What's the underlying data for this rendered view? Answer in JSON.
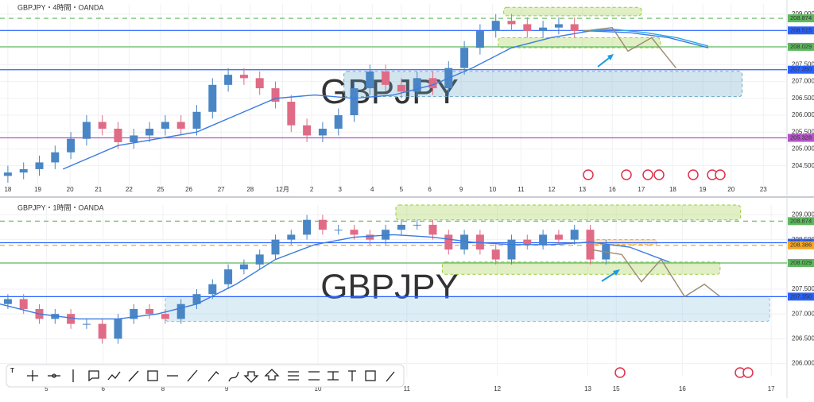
{
  "chart_data": [
    {
      "type": "candlestick",
      "title": "GBPJPY・4時間・OANDA",
      "watermark": "GBPJPY",
      "up_color": "#4a86c5",
      "down_color": "#e06b86",
      "xlim": [
        0,
        100
      ],
      "ylim": [
        203.95,
        209.3
      ],
      "xticks": [
        {
          "value": 1,
          "label": "18"
        },
        {
          "value": 4.8,
          "label": "19"
        },
        {
          "value": 8.9,
          "label": "20"
        },
        {
          "value": 12.5,
          "label": "21"
        },
        {
          "value": 16.4,
          "label": "22"
        },
        {
          "value": 20.4,
          "label": "25"
        },
        {
          "value": 24,
          "label": "26"
        },
        {
          "value": 28.1,
          "label": "27"
        },
        {
          "value": 31.8,
          "label": "28"
        },
        {
          "value": 35.9,
          "label": "12月"
        },
        {
          "value": 39.6,
          "label": "2"
        },
        {
          "value": 43.2,
          "label": "3"
        },
        {
          "value": 47.3,
          "label": "4"
        },
        {
          "value": 51,
          "label": "5"
        },
        {
          "value": 54.6,
          "label": "6"
        },
        {
          "value": 58.6,
          "label": "9"
        },
        {
          "value": 62.6,
          "label": "10"
        },
        {
          "value": 66.2,
          "label": "11"
        },
        {
          "value": 70.1,
          "label": "12"
        },
        {
          "value": 74,
          "label": "13"
        },
        {
          "value": 77.8,
          "label": "16"
        },
        {
          "value": 81.5,
          "label": "17"
        },
        {
          "value": 85.5,
          "label": "18"
        },
        {
          "value": 89.3,
          "label": "19"
        },
        {
          "value": 92.9,
          "label": "20"
        },
        {
          "value": 97,
          "label": "23"
        }
      ],
      "yticks": [
        {
          "value": 204.5,
          "label": "204.500"
        },
        {
          "value": 205,
          "label": "205.000"
        },
        {
          "value": 205.5,
          "label": "205.500"
        },
        {
          "value": 206,
          "label": "206.000"
        },
        {
          "value": 206.5,
          "label": "206.500"
        },
        {
          "value": 207,
          "label": "207.000"
        },
        {
          "value": 207.5,
          "label": "207.500"
        },
        {
          "value": 208,
          "label": "208.000"
        },
        {
          "value": 208.5,
          "label": "208.500"
        },
        {
          "value": 209,
          "label": "209.000"
        }
      ],
      "x": [
        1,
        3,
        5,
        7,
        9,
        11,
        13,
        15,
        17,
        19,
        21,
        23,
        25,
        27,
        29,
        31,
        33,
        35,
        37,
        39,
        41,
        43,
        45,
        47,
        49,
        51,
        53,
        55,
        57,
        59,
        61,
        63,
        65,
        67,
        69,
        71,
        73
      ],
      "open": [
        204.2,
        204.3,
        204.4,
        204.6,
        204.9,
        205.3,
        205.8,
        205.6,
        205.2,
        205.4,
        205.6,
        205.8,
        205.6,
        206.1,
        206.9,
        207.2,
        207.1,
        206.8,
        206.4,
        205.7,
        205.4,
        205.6,
        206.0,
        206.8,
        207.3,
        206.9,
        206.7,
        207.1,
        206.8,
        207.4,
        208.0,
        208.5,
        208.8,
        208.7,
        208.5,
        208.6,
        208.7
      ],
      "high": [
        204.5,
        204.6,
        204.8,
        205.1,
        205.5,
        206.0,
        206.0,
        205.8,
        205.6,
        205.8,
        206.0,
        206.0,
        206.3,
        207.1,
        207.4,
        207.4,
        207.3,
        207.0,
        206.6,
        205.9,
        205.8,
        206.2,
        207.0,
        207.5,
        207.5,
        207.1,
        207.3,
        207.3,
        207.6,
        208.2,
        208.7,
        209.0,
        209.0,
        208.9,
        208.8,
        208.9,
        208.9
      ],
      "low": [
        204.0,
        204.1,
        204.2,
        204.4,
        204.7,
        205.1,
        205.4,
        205.0,
        205.0,
        205.2,
        205.4,
        205.4,
        205.4,
        205.9,
        206.7,
        206.9,
        206.6,
        206.2,
        205.5,
        205.2,
        205.2,
        205.4,
        205.8,
        206.6,
        206.7,
        206.5,
        206.5,
        206.6,
        206.6,
        207.2,
        207.8,
        208.3,
        208.5,
        208.3,
        208.3,
        208.4,
        208.3
      ],
      "close": [
        204.3,
        204.4,
        204.6,
        204.9,
        205.3,
        205.8,
        205.6,
        205.2,
        205.4,
        205.6,
        205.8,
        205.6,
        206.1,
        206.9,
        207.2,
        207.1,
        206.8,
        206.4,
        205.7,
        205.4,
        205.6,
        206.0,
        206.8,
        207.3,
        206.9,
        206.7,
        207.1,
        206.8,
        207.4,
        208.0,
        208.5,
        208.8,
        208.7,
        208.5,
        208.6,
        208.7,
        208.5
      ],
      "lines": [
        {
          "color": "#3a7be0",
          "x": [
            8,
            15,
            20,
            25,
            30,
            35,
            40,
            45,
            50,
            55,
            60,
            65,
            70,
            75,
            80,
            85,
            90
          ],
          "values": [
            204.4,
            205.1,
            205.3,
            205.5,
            206.0,
            206.5,
            206.6,
            206.5,
            206.6,
            206.9,
            207.4,
            208.0,
            208.3,
            208.5,
            208.45,
            208.3,
            208.0
          ]
        },
        {
          "color": "#29a9e0",
          "x": [
            74,
            78,
            82,
            86,
            90
          ],
          "values": [
            208.5,
            208.55,
            208.45,
            208.3,
            208.05
          ]
        },
        {
          "color": "#9b8a70",
          "x": [
            74.2,
            77.8,
            79.8,
            82.8,
            85.9
          ],
          "values": [
            208.5,
            208.6,
            207.9,
            208.3,
            207.4
          ]
        }
      ],
      "zones": [
        {
          "x": [
            64,
            81.5
          ],
          "y": [
            208.95,
            209.2
          ],
          "color": "#9ccc3c"
        },
        {
          "x": [
            63.3,
            83.9
          ],
          "y": [
            208.0,
            208.3
          ],
          "color": "#9ccc3c"
        },
        {
          "x": [
            43.7,
            94.3
          ],
          "y": [
            206.55,
            207.3
          ],
          "color": "#6aa7c8"
        }
      ],
      "levels": [
        {
          "value": 208.874,
          "label": "208.874",
          "color": "#5cb85c",
          "dashed": true
        },
        {
          "value": 208.515,
          "label": "208.515",
          "color": "#2962ff",
          "dashed": false
        },
        {
          "value": 208.029,
          "label": "208.029",
          "color": "#5cb85c",
          "dashed": false
        },
        {
          "value": 207.35,
          "label": "207.350",
          "color": "#2962ff",
          "dashed": false
        },
        {
          "value": 205.328,
          "label": "205.328",
          "color": "#b455c8",
          "dashed": false
        }
      ]
    },
    {
      "type": "candlestick",
      "title": "GBPJPY・1時間・OANDA",
      "watermark": "GBPJPY",
      "up_color": "#4a86c5",
      "down_color": "#e06b86",
      "xlim": [
        0,
        100
      ],
      "ylim": [
        205.8,
        209.2
      ],
      "xticks": [
        {
          "value": 5.9,
          "label": "5"
        },
        {
          "value": 13.1,
          "label": "6"
        },
        {
          "value": 20.7,
          "label": "8"
        },
        {
          "value": 28.8,
          "label": "9"
        },
        {
          "value": 40.4,
          "label": "10"
        },
        {
          "value": 51.7,
          "label": "11"
        },
        {
          "value": 63.2,
          "label": "12"
        },
        {
          "value": 74.7,
          "label": "13"
        },
        {
          "value": 78.3,
          "label": "15"
        },
        {
          "value": 86.7,
          "label": "16"
        },
        {
          "value": 98,
          "label": "17"
        }
      ],
      "yticks": [
        {
          "value": 206,
          "label": "206.000"
        },
        {
          "value": 206.5,
          "label": "206.500"
        },
        {
          "value": 207,
          "label": "207.000"
        },
        {
          "value": 207.5,
          "label": "207.500"
        },
        {
          "value": 208,
          "label": "208.000"
        },
        {
          "value": 208.5,
          "label": "208.500"
        },
        {
          "value": 209,
          "label": "209.000"
        }
      ],
      "x": [
        1,
        3,
        5,
        7,
        9,
        11,
        13,
        15,
        17,
        19,
        21,
        23,
        25,
        27,
        29,
        31,
        33,
        35,
        37,
        39,
        41,
        43,
        45,
        47,
        49,
        51,
        53,
        55,
        57,
        59,
        61,
        63,
        65,
        67,
        69,
        71,
        73,
        75,
        77
      ],
      "open": [
        207.2,
        207.3,
        207.1,
        206.9,
        207.0,
        206.8,
        206.8,
        206.5,
        206.9,
        207.1,
        207.0,
        206.9,
        207.2,
        207.4,
        207.6,
        207.9,
        208.0,
        208.2,
        208.5,
        208.6,
        208.9,
        208.7,
        208.7,
        208.6,
        208.5,
        208.7,
        208.8,
        208.8,
        208.6,
        208.3,
        208.6,
        208.3,
        208.1,
        208.5,
        208.4,
        208.6,
        208.5,
        208.7,
        208.1
      ],
      "high": [
        207.4,
        207.4,
        207.2,
        207.1,
        207.1,
        206.9,
        206.9,
        207.0,
        207.2,
        207.2,
        207.1,
        207.3,
        207.5,
        207.7,
        208.0,
        208.1,
        208.3,
        208.6,
        208.7,
        209.0,
        209.0,
        208.8,
        208.8,
        208.7,
        208.8,
        208.9,
        208.9,
        208.9,
        208.7,
        208.7,
        208.7,
        208.4,
        208.6,
        208.6,
        208.7,
        208.7,
        208.8,
        208.8,
        208.5
      ],
      "low": [
        207.1,
        207.0,
        206.8,
        206.8,
        206.7,
        206.7,
        206.4,
        206.4,
        206.8,
        206.9,
        206.8,
        206.8,
        207.1,
        207.3,
        207.5,
        207.8,
        207.9,
        208.1,
        208.4,
        208.5,
        208.6,
        208.6,
        208.5,
        208.4,
        208.4,
        208.6,
        208.7,
        208.5,
        208.2,
        208.2,
        208.2,
        208.0,
        208.0,
        208.3,
        208.3,
        208.4,
        208.4,
        208.0,
        208.0
      ],
      "close": [
        207.3,
        207.1,
        206.9,
        207.0,
        206.8,
        206.8,
        206.5,
        206.9,
        207.1,
        207.0,
        206.9,
        207.2,
        207.4,
        207.6,
        207.9,
        208.0,
        208.2,
        208.5,
        208.6,
        208.9,
        208.7,
        208.7,
        208.6,
        208.5,
        208.7,
        208.8,
        208.8,
        208.6,
        208.3,
        208.6,
        208.3,
        208.1,
        208.5,
        208.4,
        208.6,
        208.5,
        208.7,
        208.1,
        208.4
      ],
      "lines": [
        {
          "color": "#3a7be0",
          "x": [
            0,
            5,
            10,
            15,
            20,
            25,
            30,
            35,
            40,
            45,
            50,
            55,
            60,
            65,
            70,
            75,
            80,
            85
          ],
          "values": [
            207.2,
            207.0,
            206.9,
            206.9,
            207.0,
            207.2,
            207.6,
            208.1,
            208.4,
            208.55,
            208.6,
            208.55,
            208.45,
            208.4,
            208.4,
            208.45,
            208.35,
            208.05
          ]
        },
        {
          "color": "#9b8a70",
          "x": [
            75,
            79,
            81.5,
            84,
            87,
            89.5,
            91.5
          ],
          "values": [
            208.3,
            208.2,
            207.65,
            208.1,
            207.35,
            207.6,
            207.35
          ]
        }
      ],
      "zones": [
        {
          "x": [
            50.3,
            94.1
          ],
          "y": [
            208.9,
            209.2
          ],
          "color": "#9ccc3c"
        },
        {
          "x": [
            56.2,
            91.5
          ],
          "y": [
            207.8,
            208.05
          ],
          "color": "#9ccc3c"
        },
        {
          "x": [
            74.7,
            83.5
          ],
          "y": [
            208.4,
            208.5
          ],
          "color": "#f5a623"
        },
        {
          "x": [
            21,
            97.8
          ],
          "y": [
            206.85,
            207.35
          ],
          "color": "#8cc3dd"
        }
      ],
      "levels": [
        {
          "value": 208.874,
          "label": "208.874",
          "color": "#5cb85c",
          "dashed": true
        },
        {
          "value": 208.437,
          "label": "208.437",
          "color": "#2962ff",
          "dashed": false
        },
        {
          "value": 208.386,
          "label": "208.386",
          "color": "#f5a623",
          "dashed": true
        },
        {
          "value": 208.029,
          "label": "208.029",
          "color": "#5cb85c",
          "dashed": false
        },
        {
          "value": 207.35,
          "label": "207.350",
          "color": "#2962ff",
          "dashed": false
        }
      ]
    }
  ]
}
